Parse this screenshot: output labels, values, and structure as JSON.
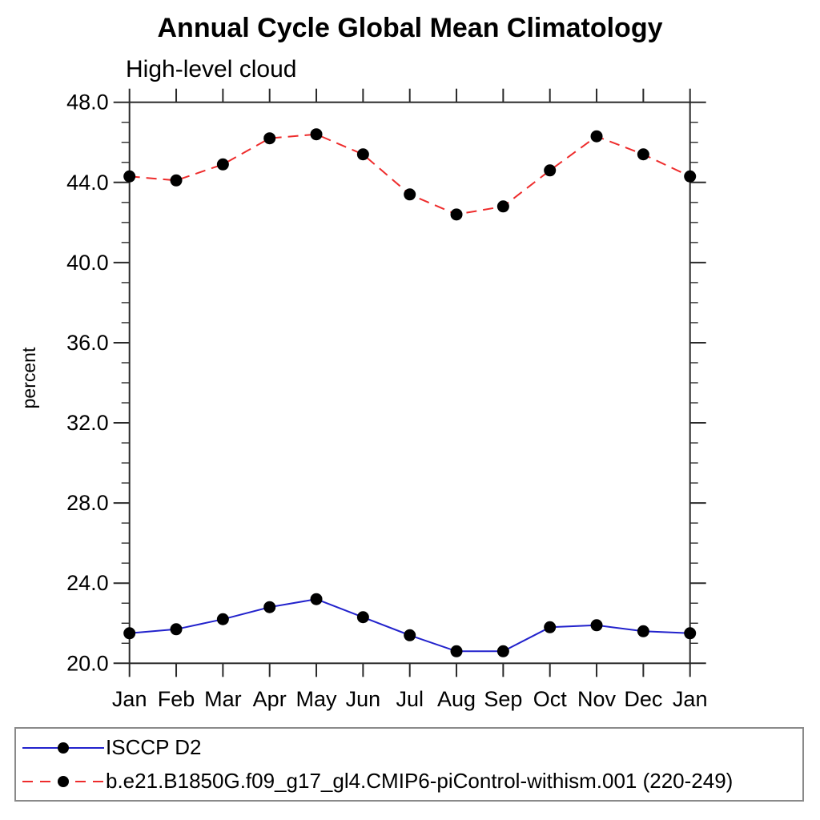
{
  "chart_data": {
    "type": "line",
    "title": "Annual Cycle Global Mean Climatology",
    "subtitle": "High-level cloud",
    "ylabel": "percent",
    "xlabel": "",
    "ylim": [
      20.0,
      48.0
    ],
    "ytick_major_step": 4.0,
    "ytick_minor_step": 1.0,
    "ytick_labels": [
      "20.0",
      "24.0",
      "28.0",
      "32.0",
      "36.0",
      "40.0",
      "44.0",
      "48.0"
    ],
    "categories": [
      "Jan",
      "Feb",
      "Mar",
      "Apr",
      "May",
      "Jun",
      "Jul",
      "Aug",
      "Sep",
      "Oct",
      "Nov",
      "Dec",
      "Jan"
    ],
    "grid": false,
    "legend_position": "bottom",
    "series": [
      {
        "name": "ISCCP D2",
        "color": "#2222cc",
        "style": "solid",
        "marker": "circle",
        "marker_color": "#000000",
        "values": [
          21.5,
          21.7,
          22.2,
          22.8,
          23.2,
          22.3,
          21.4,
          20.6,
          20.6,
          21.8,
          21.9,
          21.6,
          21.5
        ]
      },
      {
        "name": "b.e21.B1850G.f09_g17_gl4.CMIP6-piControl-withism.001 (220-249)",
        "color": "#ee2c2c",
        "style": "dashed",
        "marker": "circle",
        "marker_color": "#000000",
        "values": [
          44.3,
          44.1,
          44.9,
          46.2,
          46.4,
          45.4,
          43.4,
          42.4,
          42.8,
          44.6,
          46.3,
          45.4,
          44.3
        ]
      }
    ]
  }
}
